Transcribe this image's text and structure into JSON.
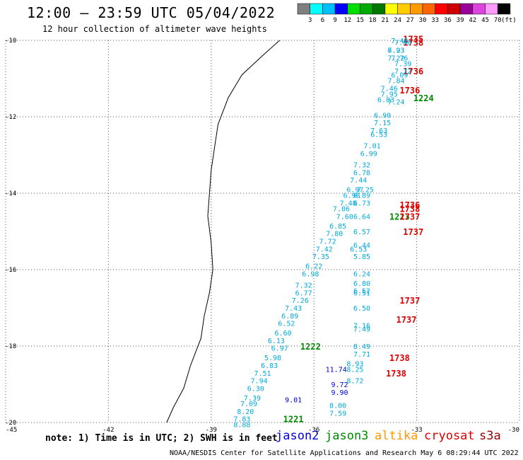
{
  "header": {
    "title": "12:00 – 23:59 UTC 05/04/2022",
    "subtitle": "12 hour collection of altimeter wave heights"
  },
  "colorbar": {
    "ticks": [
      "3",
      "6",
      "9",
      "12",
      "15",
      "18",
      "21",
      "24",
      "27",
      "30",
      "33",
      "36",
      "39",
      "42",
      "45",
      "70"
    ],
    "unit": "(ft)",
    "colors": [
      "#7f7f7f",
      "#00ffff",
      "#00bfff",
      "#0000ff",
      "#00dd00",
      "#00aa00",
      "#007700",
      "#ffff00",
      "#ffcc00",
      "#ff9900",
      "#ff6600",
      "#ff0000",
      "#cc0000",
      "#990099",
      "#dd44dd",
      "#ff99ff",
      "#000000"
    ]
  },
  "footer": {
    "note": "note: 1) Time is in UTC; 2) SWH is in feet",
    "credit": "NOAA/NESDIS Center for Satellite Applications and Research    May  6 08:29:44 UTC 2022"
  },
  "satellites": [
    {
      "name": "jason2",
      "color": "#0000dd"
    },
    {
      "name": "jason3",
      "color": "#008800"
    },
    {
      "name": "altika",
      "color": "#ff9900"
    },
    {
      "name": "cryosat",
      "color": "#dd0000"
    },
    {
      "name": "s3a",
      "color": "#990000"
    }
  ],
  "chart_data": {
    "type": "scatter",
    "xlim": [
      -45,
      -30
    ],
    "ylim": [
      -20,
      -10
    ],
    "x_ticks": [
      -45,
      -42,
      -39,
      -36,
      -33,
      -30
    ],
    "y_ticks": [
      -10,
      -12,
      -14,
      -16,
      -18,
      -20
    ],
    "x_tick_labels": [
      "-45",
      "-42",
      "-39",
      "-36",
      "-33",
      "-30"
    ],
    "y_tick_labels": [
      "-10",
      "-12",
      "-14",
      "-16",
      "-18",
      "-20"
    ],
    "grid": true,
    "coastline": [
      [
        -37.0,
        -10.0
      ],
      [
        -37.5,
        -10.4
      ],
      [
        -38.1,
        -10.9
      ],
      [
        -38.5,
        -11.5
      ],
      [
        -38.8,
        -12.2
      ],
      [
        -38.9,
        -12.8
      ],
      [
        -39.0,
        -13.4
      ],
      [
        -39.05,
        -14.0
      ],
      [
        -39.1,
        -14.6
      ],
      [
        -39.0,
        -15.3
      ],
      [
        -38.95,
        -16.0
      ],
      [
        -39.05,
        -16.6
      ],
      [
        -39.2,
        -17.2
      ],
      [
        -39.3,
        -17.8
      ],
      [
        -39.6,
        -18.5
      ],
      [
        -39.8,
        -19.1
      ],
      [
        -40.1,
        -19.6
      ],
      [
        -40.3,
        -20.0
      ]
    ],
    "series": [
      {
        "name": "jason3",
        "color": "#008800",
        "labels": [
          {
            "x": -32.8,
            "y": -11.5,
            "text": "1224"
          },
          {
            "x": -33.5,
            "y": -14.6,
            "text": "1223"
          },
          {
            "x": -36.1,
            "y": -18.0,
            "text": "1222"
          },
          {
            "x": -36.6,
            "y": -19.9,
            "text": "1221"
          }
        ]
      },
      {
        "name": "cryosat",
        "color": "#dd0000",
        "labels": [
          {
            "x": -33.1,
            "y": -9.95,
            "text": "1735"
          },
          {
            "x": -33.1,
            "y": -10.05,
            "text": "1738"
          },
          {
            "x": -33.1,
            "y": -10.8,
            "text": "1736"
          },
          {
            "x": -33.2,
            "y": -11.3,
            "text": "1736"
          },
          {
            "x": -33.2,
            "y": -14.3,
            "text": "1736"
          },
          {
            "x": -33.2,
            "y": -14.4,
            "text": "1738"
          },
          {
            "x": -33.2,
            "y": -14.6,
            "text": "1737"
          },
          {
            "x": -33.1,
            "y": -15.0,
            "text": "1737"
          },
          {
            "x": -33.2,
            "y": -16.8,
            "text": "1737"
          },
          {
            "x": -33.3,
            "y": -17.3,
            "text": "1737"
          },
          {
            "x": -33.5,
            "y": -18.3,
            "text": "1738"
          },
          {
            "x": -33.6,
            "y": -18.7,
            "text": "1738"
          }
        ]
      },
      {
        "name": "jason2",
        "color": "#0000dd",
        "points": [
          {
            "x": -35.35,
            "y": -18.6,
            "v": 11.74
          },
          {
            "x": -35.25,
            "y": -19.0,
            "v": 9.72
          },
          {
            "x": -35.25,
            "y": -19.2,
            "v": 9.9
          },
          {
            "x": -36.6,
            "y": -19.4,
            "v": 9.01
          }
        ]
      },
      {
        "name": "swh",
        "color": "#00aadd",
        "points": [
          {
            "x": -33.5,
            "y": -10.0,
            "v": 7.48
          },
          {
            "x": -33.4,
            "y": -10.05,
            "v": 7.6
          },
          {
            "x": -33.6,
            "y": -10.25,
            "v": 6.93
          },
          {
            "x": -33.6,
            "y": -10.25,
            "v": 7.23
          },
          {
            "x": -33.6,
            "y": -10.45,
            "v": 7.22
          },
          {
            "x": -33.5,
            "y": -10.45,
            "v": 7.76
          },
          {
            "x": -33.4,
            "y": -10.6,
            "v": 7.39
          },
          {
            "x": -33.4,
            "y": -10.8,
            "v": 7.72
          },
          {
            "x": -33.5,
            "y": -10.9,
            "v": 6.09
          },
          {
            "x": -33.6,
            "y": -11.05,
            "v": 7.84
          },
          {
            "x": -33.8,
            "y": -11.25,
            "v": 7.46
          },
          {
            "x": -33.8,
            "y": -11.4,
            "v": 7.95
          },
          {
            "x": -33.9,
            "y": -11.55,
            "v": 6.83
          },
          {
            "x": -33.6,
            "y": -11.6,
            "v": 7.24
          },
          {
            "x": -34.0,
            "y": -11.95,
            "v": 6.9
          },
          {
            "x": -34.0,
            "y": -12.15,
            "v": 7.15
          },
          {
            "x": -34.1,
            "y": -12.35,
            "v": 7.63
          },
          {
            "x": -34.1,
            "y": -12.45,
            "v": 6.53
          },
          {
            "x": -34.3,
            "y": -12.75,
            "v": 7.01
          },
          {
            "x": -34.4,
            "y": -12.95,
            "v": 6.99
          },
          {
            "x": -34.6,
            "y": -13.25,
            "v": 7.32
          },
          {
            "x": -34.6,
            "y": -13.45,
            "v": 6.78
          },
          {
            "x": -34.7,
            "y": -13.65,
            "v": 7.44
          },
          {
            "x": -34.8,
            "y": -13.9,
            "v": 6.97
          },
          {
            "x": -34.5,
            "y": -13.9,
            "v": 7.25
          },
          {
            "x": -34.9,
            "y": -14.05,
            "v": 6.98
          },
          {
            "x": -34.6,
            "y": -14.05,
            "v": 6.89
          },
          {
            "x": -35.0,
            "y": -14.25,
            "v": 7.48
          },
          {
            "x": -34.6,
            "y": -14.25,
            "v": 6.73
          },
          {
            "x": -35.2,
            "y": -14.4,
            "v": 7.06
          },
          {
            "x": -35.1,
            "y": -14.6,
            "v": 7.6
          },
          {
            "x": -34.6,
            "y": -14.6,
            "v": 6.64
          },
          {
            "x": -35.3,
            "y": -14.85,
            "v": 6.85
          },
          {
            "x": -34.6,
            "y": -15.0,
            "v": 6.57
          },
          {
            "x": -35.4,
            "y": -15.05,
            "v": 7.8
          },
          {
            "x": -35.6,
            "y": -15.25,
            "v": 7.72
          },
          {
            "x": -34.6,
            "y": -15.35,
            "v": 6.44
          },
          {
            "x": -35.7,
            "y": -15.45,
            "v": 7.42
          },
          {
            "x": -34.7,
            "y": -15.45,
            "v": 6.53
          },
          {
            "x": -35.8,
            "y": -15.65,
            "v": 7.35
          },
          {
            "x": -34.6,
            "y": -15.65,
            "v": 5.85
          },
          {
            "x": -36.0,
            "y": -15.9,
            "v": 6.22
          },
          {
            "x": -36.1,
            "y": -16.1,
            "v": 6.98
          },
          {
            "x": -34.6,
            "y": -16.1,
            "v": 6.24
          },
          {
            "x": -36.3,
            "y": -16.4,
            "v": 7.32
          },
          {
            "x": -34.6,
            "y": -16.35,
            "v": 6.8
          },
          {
            "x": -36.3,
            "y": -16.6,
            "v": 6.77
          },
          {
            "x": -34.6,
            "y": -16.55,
            "v": 6.52
          },
          {
            "x": -34.6,
            "y": -16.6,
            "v": 6.51
          },
          {
            "x": -36.4,
            "y": -16.8,
            "v": 7.26
          },
          {
            "x": -36.6,
            "y": -17.0,
            "v": 7.43
          },
          {
            "x": -34.6,
            "y": -17.0,
            "v": 6.5
          },
          {
            "x": -36.7,
            "y": -17.2,
            "v": 6.89
          },
          {
            "x": -36.8,
            "y": -17.4,
            "v": 6.52
          },
          {
            "x": -34.6,
            "y": -17.45,
            "v": 7.16
          },
          {
            "x": -34.6,
            "y": -17.55,
            "v": 7.49
          },
          {
            "x": -36.9,
            "y": -17.65,
            "v": 6.6
          },
          {
            "x": -37.1,
            "y": -17.85,
            "v": 6.13
          },
          {
            "x": -37.0,
            "y": -18.05,
            "v": 6.97
          },
          {
            "x": -34.6,
            "y": -18.0,
            "v": 8.49
          },
          {
            "x": -34.6,
            "y": -18.2,
            "v": 7.71
          },
          {
            "x": -37.2,
            "y": -18.3,
            "v": 5.98
          },
          {
            "x": -37.3,
            "y": -18.5,
            "v": 6.83
          },
          {
            "x": -34.8,
            "y": -18.45,
            "v": 8.93
          },
          {
            "x": -34.8,
            "y": -18.6,
            "v": 8.25
          },
          {
            "x": -37.5,
            "y": -18.7,
            "v": 7.51
          },
          {
            "x": -37.6,
            "y": -18.9,
            "v": 7.94
          },
          {
            "x": -34.8,
            "y": -18.9,
            "v": 8.72
          },
          {
            "x": -37.7,
            "y": -19.1,
            "v": 6.3
          },
          {
            "x": -37.8,
            "y": -19.35,
            "v": 7.39
          },
          {
            "x": -37.9,
            "y": -19.5,
            "v": 7.09
          },
          {
            "x": -35.3,
            "y": -19.55,
            "v": 8.0
          },
          {
            "x": -38.0,
            "y": -19.7,
            "v": 8.2
          },
          {
            "x": -35.3,
            "y": -19.75,
            "v": 7.59
          },
          {
            "x": -38.1,
            "y": -19.9,
            "v": 7.83
          },
          {
            "x": -38.1,
            "y": -20.05,
            "v": 8.88
          }
        ]
      }
    ]
  }
}
